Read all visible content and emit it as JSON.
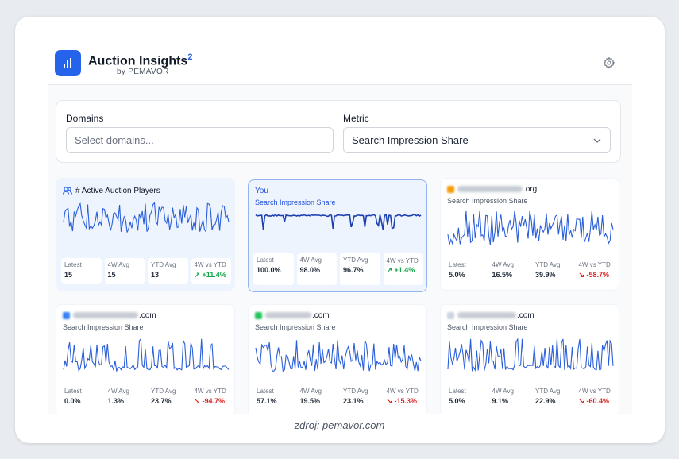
{
  "app": {
    "title": "Auction Insights",
    "title_sup": "2",
    "subtitle": "by PEMAVOR",
    "accent": "#2563eb"
  },
  "filters": {
    "domains_label": "Domains",
    "domains_placeholder": "Select domains...",
    "metric_label": "Metric",
    "metric_value": "Search Impression Share"
  },
  "cards": [
    {
      "title": "# Active Auction Players",
      "subtitle": "",
      "icon": "users-icon",
      "stats": [
        {
          "label": "Latest",
          "value": "15"
        },
        {
          "label": "4W Avg",
          "value": "15"
        },
        {
          "label": "YTD Avg",
          "value": "13"
        },
        {
          "label": "4W vs YTD",
          "value": "↗ +11.4%",
          "trend": "up"
        }
      ]
    },
    {
      "title": "You",
      "subtitle": "Search Impression Share",
      "stats": [
        {
          "label": "Latest",
          "value": "100.0%"
        },
        {
          "label": "4W Avg",
          "value": "98.0%"
        },
        {
          "label": "YTD Avg",
          "value": "96.7%"
        },
        {
          "label": "4W vs YTD",
          "value": "↗ +1.4%",
          "trend": "up"
        }
      ]
    },
    {
      "title": ".org",
      "subtitle": "Search Impression Share",
      "stats": [
        {
          "label": "Latest",
          "value": "5.0%"
        },
        {
          "label": "4W Avg",
          "value": "16.5%"
        },
        {
          "label": "YTD Avg",
          "value": "39.9%"
        },
        {
          "label": "4W vs YTD",
          "value": "↘ -58.7%",
          "trend": "down"
        }
      ]
    },
    {
      "title": ".com",
      "subtitle": "Search Impression Share",
      "stats": [
        {
          "label": "Latest",
          "value": "0.0%"
        },
        {
          "label": "4W Avg",
          "value": "1.3%"
        },
        {
          "label": "YTD Avg",
          "value": "23.7%"
        },
        {
          "label": "4W vs YTD",
          "value": "↘ -94.7%",
          "trend": "down"
        }
      ]
    },
    {
      "title": ".com",
      "subtitle": "Search Impression Share",
      "stats": [
        {
          "label": "Latest",
          "value": "57.1%"
        },
        {
          "label": "4W Avg",
          "value": "19.5%"
        },
        {
          "label": "YTD Avg",
          "value": "23.1%"
        },
        {
          "label": "4W vs YTD",
          "value": "↘ -15.3%",
          "trend": "down"
        }
      ]
    },
    {
      "title": ".com",
      "subtitle": "Search Impression Share",
      "stats": [
        {
          "label": "Latest",
          "value": "5.0%"
        },
        {
          "label": "4W Avg",
          "value": "9.1%"
        },
        {
          "label": "YTD Avg",
          "value": "22.9%"
        },
        {
          "label": "4W vs YTD",
          "value": "↘ -60.4%",
          "trend": "down"
        }
      ]
    }
  ],
  "colors": {
    "line": "#2b5fd9",
    "line_you": "#1e40af",
    "positive": "#16a34a",
    "negative": "#dc2626"
  },
  "caption": "zdroj: pemavor.com"
}
